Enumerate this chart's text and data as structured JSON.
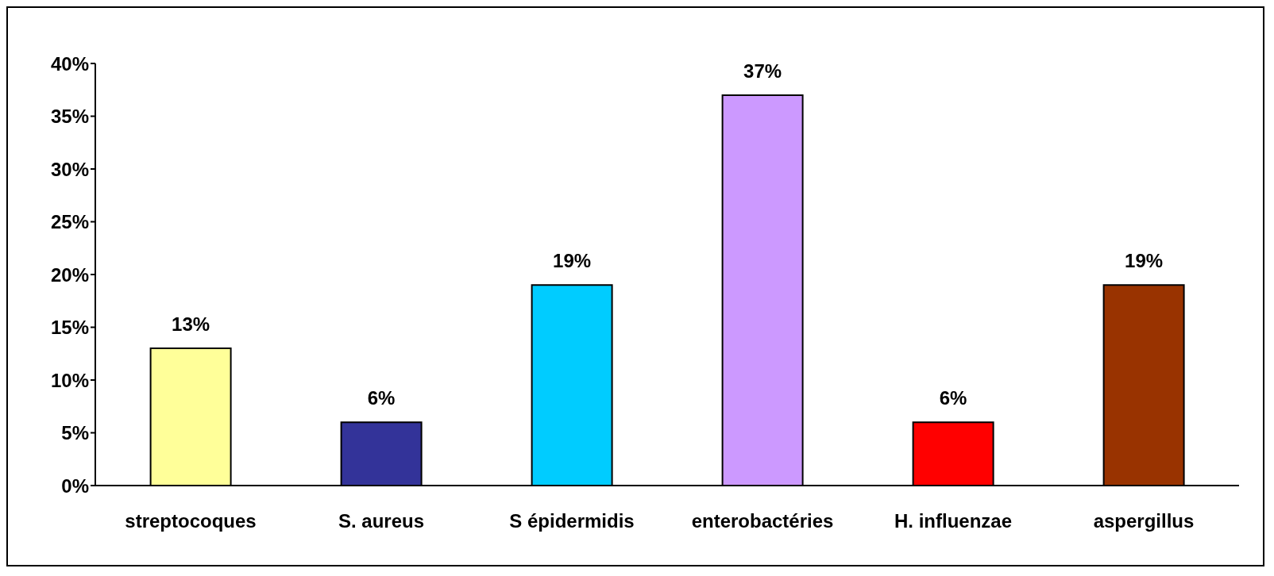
{
  "chart_data": {
    "type": "bar",
    "categories": [
      "streptocoques",
      "S. aureus",
      "S épidermidis",
      "enterobactéries",
      "H. influenzae",
      "aspergillus"
    ],
    "values": [
      13,
      6,
      19,
      37,
      6,
      19
    ],
    "colors": [
      "#ffff99",
      "#333399",
      "#00ccff",
      "#cc99ff",
      "#ff0000",
      "#993300"
    ],
    "value_labels": [
      "13%",
      "6%",
      "19%",
      "37%",
      "6%",
      "19%"
    ],
    "ylim": [
      0,
      40
    ],
    "yticks": [
      {
        "value": 0,
        "label": "0%"
      },
      {
        "value": 5,
        "label": "5%"
      },
      {
        "value": 10,
        "label": "10%"
      },
      {
        "value": 15,
        "label": "15%"
      },
      {
        "value": 20,
        "label": "20%"
      },
      {
        "value": 25,
        "label": "25%"
      },
      {
        "value": 30,
        "label": "30%"
      },
      {
        "value": 35,
        "label": "35%"
      },
      {
        "value": 40,
        "label": "40%"
      }
    ],
    "grid": false,
    "legend": false
  }
}
